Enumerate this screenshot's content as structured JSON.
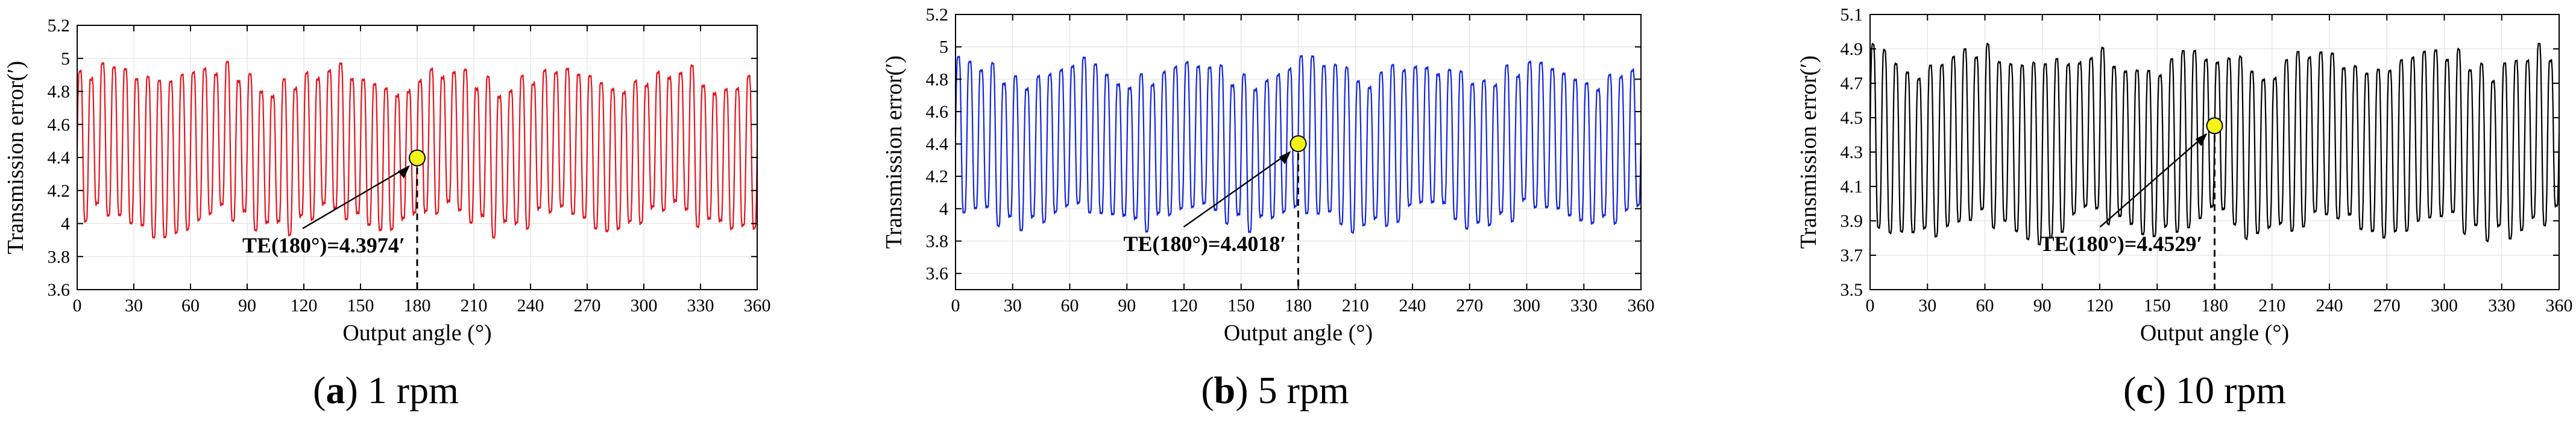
{
  "chart_data": [
    {
      "type": "line",
      "panel_letter": "a",
      "caption_text": "1 rpm",
      "xlabel": "Output angle (°)",
      "ylabel": "Transmission error(′)",
      "xlim": [
        0,
        360
      ],
      "ylim": [
        3.6,
        5.2
      ],
      "xticks": [
        0,
        30,
        60,
        90,
        120,
        150,
        180,
        210,
        240,
        270,
        300,
        330,
        360
      ],
      "yticks": [
        3.6,
        3.8,
        4,
        4.2,
        4.4,
        4.6,
        4.8,
        5,
        5.2
      ],
      "grid": true,
      "series": [
        {
          "name": "TE",
          "color": "#e8141c",
          "cycles": 60,
          "mean": 4.45,
          "amplitude": 0.5,
          "amp_variation": 0.12,
          "samples": 900
        }
      ],
      "annotation": {
        "x": 180,
        "y": 4.3974,
        "label": "TE(180°)=4.3974′"
      }
    },
    {
      "type": "line",
      "panel_letter": "b",
      "caption_text": "5 rpm",
      "xlabel": "Output angle (°)",
      "ylabel": "Transmission error(′)",
      "xlim": [
        0,
        360
      ],
      "ylim": [
        3.5,
        5.2
      ],
      "xticks": [
        0,
        30,
        60,
        90,
        120,
        150,
        180,
        210,
        240,
        270,
        300,
        330,
        360
      ],
      "yticks": [
        3.6,
        3.8,
        4,
        4.2,
        4.4,
        4.6,
        4.8,
        5,
        5.2
      ],
      "grid": true,
      "series": [
        {
          "name": "TE",
          "color": "#1426e0",
          "cycles": 60,
          "mean": 4.4,
          "amplitude": 0.52,
          "amp_variation": 0.12,
          "samples": 900
        }
      ],
      "annotation": {
        "x": 180,
        "y": 4.4018,
        "label": "TE(180°)=4.4018′"
      }
    },
    {
      "type": "line",
      "panel_letter": "c",
      "caption_text": "10 rpm",
      "xlabel": "Output angle (°)",
      "ylabel": "Transmission error(′)",
      "xlim": [
        0,
        360
      ],
      "ylim": [
        3.5,
        5.1
      ],
      "xticks": [
        0,
        30,
        60,
        90,
        120,
        150,
        180,
        210,
        240,
        270,
        300,
        330,
        360
      ],
      "yticks": [
        3.5,
        3.7,
        3.9,
        4.1,
        4.3,
        4.5,
        4.7,
        4.9,
        5.1
      ],
      "grid": true,
      "series": [
        {
          "name": "TE",
          "color": "#000000",
          "cycles": 60,
          "mean": 4.35,
          "amplitude": 0.55,
          "amp_variation": 0.12,
          "samples": 900
        }
      ],
      "annotation": {
        "x": 180,
        "y": 4.4529,
        "label": "TE(180°)=4.4529′"
      }
    }
  ]
}
